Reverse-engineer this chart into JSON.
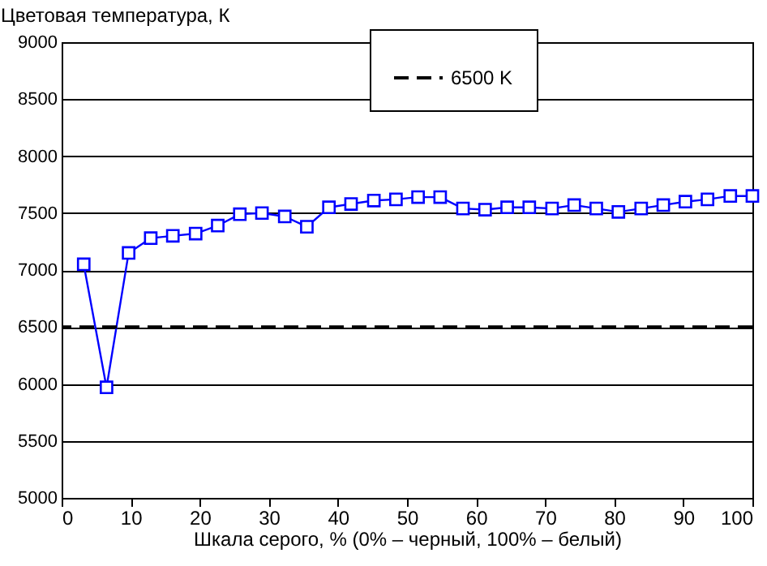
{
  "chart_data": {
    "type": "line",
    "xlabel": "Шкала серого, % (0% – черный, 100% – белый)",
    "ylabel": "Цветовая температура, К",
    "x": [
      3.2,
      6.5,
      9.7,
      12.9,
      16.1,
      19.4,
      22.6,
      25.8,
      29.0,
      32.3,
      35.5,
      38.7,
      41.9,
      45.2,
      48.4,
      51.6,
      54.8,
      58.1,
      61.3,
      64.5,
      67.7,
      71.0,
      74.2,
      77.4,
      80.6,
      83.9,
      87.1,
      90.3,
      93.5,
      96.8,
      100
    ],
    "series": [
      {
        "color": "#0000ff",
        "values": [
          7050,
          5970,
          7150,
          7280,
          7300,
          7320,
          7390,
          7490,
          7500,
          7470,
          7380,
          7550,
          7580,
          7610,
          7620,
          7640,
          7640,
          7540,
          7530,
          7550,
          7550,
          7540,
          7570,
          7540,
          7510,
          7540,
          7570,
          7600,
          7620,
          7650,
          7650
        ]
      }
    ],
    "marker": "square",
    "grid": "y",
    "legend": "top",
    "ref_lines": [
      {
        "axis": "y",
        "value": 6500,
        "label": "6500 K",
        "color": "#000000",
        "line_style": "dashed"
      }
    ],
    "xlim": [
      0,
      100
    ],
    "xticks": [
      0,
      10,
      20,
      30,
      40,
      50,
      60,
      70,
      80,
      90,
      100
    ],
    "ylim": [
      5000,
      9000
    ],
    "yticks": [
      5000,
      5500,
      6000,
      6500,
      7000,
      7500,
      8000,
      8500,
      9000
    ]
  }
}
